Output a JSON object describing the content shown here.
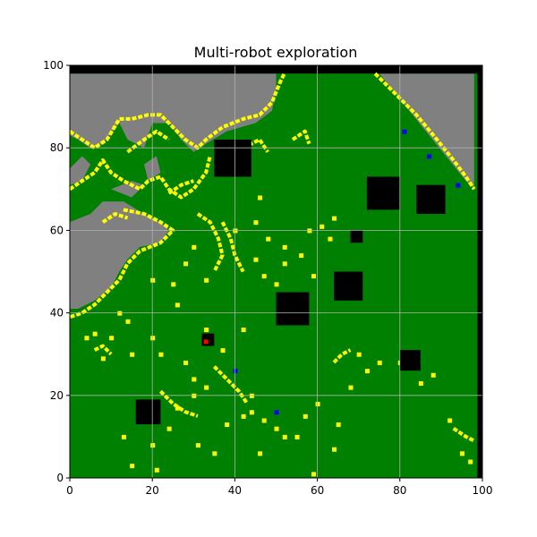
{
  "chart_data": {
    "type": "heatmap",
    "title": "Multi-robot exploration",
    "xlabel": "",
    "ylabel": "",
    "xlim": [
      0,
      100
    ],
    "ylim": [
      0,
      100
    ],
    "xticks": [
      0,
      20,
      40,
      60,
      80,
      100
    ],
    "yticks": [
      0,
      20,
      40,
      60,
      80,
      100
    ],
    "grid": true,
    "colors": {
      "explored": "#008000",
      "unknown": "#808080",
      "frontier": "#ffff00",
      "obstacle": "#000000",
      "robot": "#0000ff",
      "target": "#ff0000",
      "grid": "#b0b0b0"
    },
    "legend": "none",
    "unknown_regions": [
      [
        [
          0,
          98
        ],
        [
          50,
          98
        ],
        [
          50,
          94
        ],
        [
          49,
          89
        ],
        [
          45,
          86
        ],
        [
          38,
          84
        ],
        [
          33,
          81
        ],
        [
          30,
          79
        ],
        [
          27,
          82
        ],
        [
          24,
          86
        ],
        [
          20,
          86
        ],
        [
          18,
          80
        ],
        [
          14,
          82
        ],
        [
          12,
          86
        ],
        [
          8,
          81
        ],
        [
          5,
          80
        ],
        [
          2,
          82
        ],
        [
          0,
          83
        ]
      ],
      [
        [
          0,
          75
        ],
        [
          3,
          78
        ],
        [
          5,
          76
        ],
        [
          3,
          72
        ],
        [
          0,
          71
        ]
      ],
      [
        [
          0,
          62
        ],
        [
          5,
          64
        ],
        [
          8,
          67
        ],
        [
          13,
          67
        ],
        [
          18,
          64
        ],
        [
          22,
          62
        ],
        [
          24,
          60
        ],
        [
          22,
          57
        ],
        [
          17,
          56
        ],
        [
          14,
          53
        ],
        [
          12,
          50
        ],
        [
          10,
          46
        ],
        [
          6,
          43
        ],
        [
          2,
          41
        ],
        [
          0,
          41
        ]
      ],
      [
        [
          75,
          98
        ],
        [
          98,
          98
        ],
        [
          98,
          70
        ],
        [
          96,
          72
        ]
      ],
      [
        [
          18,
          76
        ],
        [
          21,
          78
        ],
        [
          22,
          74
        ],
        [
          19,
          72
        ]
      ],
      [
        [
          10,
          70
        ],
        [
          15,
          72
        ],
        [
          18,
          71
        ],
        [
          15,
          68
        ]
      ]
    ],
    "frontier_paths": [
      [
        [
          0,
          84
        ],
        [
          3,
          82
        ],
        [
          6,
          80
        ],
        [
          9,
          82
        ],
        [
          12,
          87
        ],
        [
          15,
          87
        ],
        [
          19,
          88
        ],
        [
          22,
          88
        ],
        [
          25,
          85
        ],
        [
          28,
          82
        ],
        [
          31,
          80
        ],
        [
          33,
          82
        ],
        [
          37,
          85
        ],
        [
          42,
          87
        ],
        [
          46,
          88
        ],
        [
          49,
          91
        ],
        [
          51,
          96
        ],
        [
          52,
          98
        ]
      ],
      [
        [
          0,
          70
        ],
        [
          3,
          72
        ],
        [
          6,
          74
        ],
        [
          8,
          77
        ],
        [
          10,
          74
        ],
        [
          13,
          72
        ],
        [
          17,
          70
        ],
        [
          19,
          72
        ],
        [
          22,
          73
        ],
        [
          24,
          70
        ],
        [
          27,
          68
        ],
        [
          30,
          70
        ],
        [
          33,
          74
        ],
        [
          34,
          78
        ]
      ],
      [
        [
          13,
          65
        ],
        [
          18,
          64
        ],
        [
          22,
          62
        ],
        [
          25,
          60
        ],
        [
          22,
          57
        ],
        [
          17,
          55
        ],
        [
          14,
          52
        ],
        [
          12,
          48
        ],
        [
          9,
          45
        ],
        [
          6,
          42
        ],
        [
          3,
          40
        ],
        [
          0,
          39
        ]
      ],
      [
        [
          8,
          62
        ],
        [
          11,
          64
        ],
        [
          14,
          63
        ]
      ],
      [
        [
          31,
          64
        ],
        [
          34,
          62
        ],
        [
          36,
          58
        ],
        [
          37,
          54
        ],
        [
          35,
          50
        ]
      ],
      [
        [
          37,
          62
        ],
        [
          39,
          58
        ],
        [
          40,
          54
        ],
        [
          42,
          50
        ]
      ],
      [
        [
          74,
          98
        ],
        [
          79,
          93
        ],
        [
          84,
          88
        ],
        [
          89,
          82
        ],
        [
          93,
          77
        ],
        [
          96,
          73
        ],
        [
          98,
          70
        ]
      ],
      [
        [
          35,
          27
        ],
        [
          38,
          24
        ],
        [
          41,
          21
        ],
        [
          43,
          18
        ]
      ],
      [
        [
          22,
          21
        ],
        [
          25,
          18
        ],
        [
          28,
          16
        ],
        [
          31,
          15
        ]
      ],
      [
        [
          64,
          28
        ],
        [
          66,
          30
        ],
        [
          68,
          31
        ]
      ],
      [
        [
          6,
          31
        ],
        [
          8,
          32
        ],
        [
          10,
          30
        ]
      ],
      [
        [
          93,
          12
        ],
        [
          96,
          10
        ],
        [
          98,
          9
        ]
      ],
      [
        [
          24,
          69
        ],
        [
          27,
          71
        ],
        [
          30,
          72
        ]
      ],
      [
        [
          14,
          79
        ],
        [
          18,
          82
        ],
        [
          21,
          84
        ],
        [
          24,
          82
        ]
      ],
      [
        [
          42,
          80
        ],
        [
          46,
          82
        ],
        [
          48,
          79
        ]
      ],
      [
        [
          54,
          82
        ],
        [
          57,
          84
        ],
        [
          58,
          81
        ]
      ]
    ],
    "frontier_dots": [
      [
        20,
        48
      ],
      [
        25,
        47
      ],
      [
        28,
        52
      ],
      [
        33,
        48
      ],
      [
        45,
        53
      ],
      [
        47,
        49
      ],
      [
        50,
        47
      ],
      [
        52,
        52
      ],
      [
        56,
        54
      ],
      [
        63,
        58
      ],
      [
        61,
        61
      ],
      [
        64,
        63
      ],
      [
        58,
        60
      ],
      [
        45,
        62
      ],
      [
        46,
        68
      ],
      [
        40,
        60
      ],
      [
        12,
        40
      ],
      [
        14,
        38
      ],
      [
        10,
        34
      ],
      [
        6,
        35
      ],
      [
        15,
        30
      ],
      [
        20,
        34
      ],
      [
        22,
        30
      ],
      [
        28,
        28
      ],
      [
        30,
        24
      ],
      [
        33,
        22
      ],
      [
        30,
        20
      ],
      [
        26,
        17
      ],
      [
        24,
        12
      ],
      [
        20,
        8
      ],
      [
        13,
        10
      ],
      [
        15,
        3
      ],
      [
        21,
        2
      ],
      [
        31,
        8
      ],
      [
        35,
        6
      ],
      [
        38,
        13
      ],
      [
        42,
        15
      ],
      [
        44,
        16
      ],
      [
        47,
        14
      ],
      [
        50,
        12
      ],
      [
        46,
        6
      ],
      [
        52,
        10
      ],
      [
        55,
        10
      ],
      [
        57,
        15
      ],
      [
        60,
        18
      ],
      [
        65,
        13
      ],
      [
        68,
        22
      ],
      [
        72,
        26
      ],
      [
        75,
        28
      ],
      [
        80,
        28
      ],
      [
        85,
        23
      ],
      [
        92,
        14
      ],
      [
        95,
        6
      ],
      [
        97,
        4
      ],
      [
        64,
        7
      ],
      [
        59,
        1
      ],
      [
        88,
        25
      ],
      [
        70,
        30
      ],
      [
        44,
        20
      ],
      [
        37,
        31
      ],
      [
        4,
        34
      ],
      [
        8,
        29
      ],
      [
        26,
        42
      ],
      [
        33,
        36
      ],
      [
        42,
        36
      ],
      [
        57,
        38
      ],
      [
        48,
        58
      ],
      [
        52,
        56
      ],
      [
        59,
        49
      ],
      [
        30,
        56
      ]
    ],
    "obstacles": [
      [
        [
          35,
          73
        ],
        [
          44,
          82
        ]
      ],
      [
        [
          72,
          65
        ],
        [
          80,
          73
        ]
      ],
      [
        [
          84,
          64
        ],
        [
          91,
          71
        ]
      ],
      [
        [
          68,
          57
        ],
        [
          71,
          60
        ]
      ],
      [
        [
          64,
          43
        ],
        [
          71,
          50
        ]
      ],
      [
        [
          50,
          37
        ],
        [
          58,
          45
        ]
      ],
      [
        [
          32,
          32
        ],
        [
          35,
          35
        ]
      ],
      [
        [
          80,
          26
        ],
        [
          85,
          31
        ]
      ],
      [
        [
          16,
          13
        ],
        [
          22,
          19
        ]
      ]
    ],
    "robots": [
      [
        40,
        26
      ],
      [
        50,
        16
      ],
      [
        81,
        84
      ],
      [
        87,
        78
      ],
      [
        94,
        71
      ]
    ],
    "targets": [
      [
        33,
        33
      ]
    ]
  }
}
